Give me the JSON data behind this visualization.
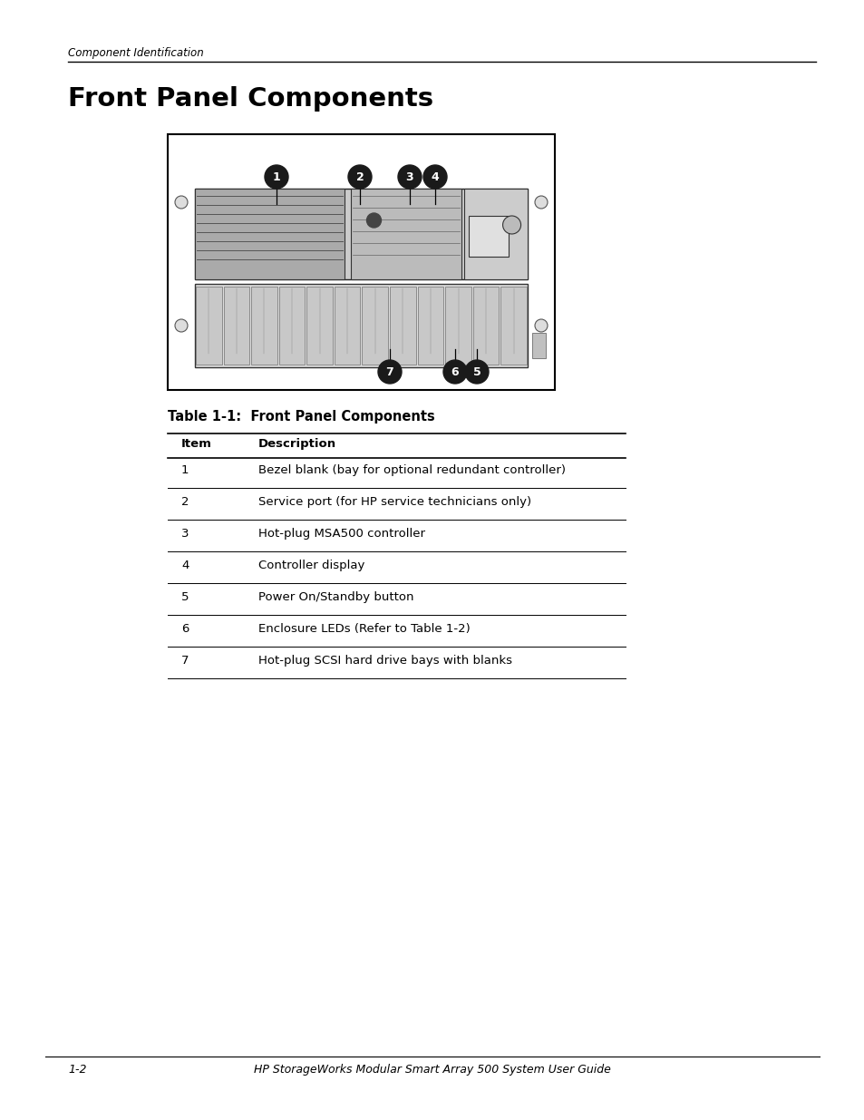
{
  "page_header_italic": "Component Identification",
  "page_title": "Front Panel Components",
  "table_title": "Table 1-1:  Front Panel Components",
  "col1_header": "Item",
  "col2_header": "Description",
  "table_rows": [
    [
      "1",
      "Bezel blank (bay for optional redundant controller)"
    ],
    [
      "2",
      "Service port (for HP service technicians only)"
    ],
    [
      "3",
      "Hot-plug MSA500 controller"
    ],
    [
      "4",
      "Controller display"
    ],
    [
      "5",
      "Power On/Standby button"
    ],
    [
      "6",
      "Enclosure LEDs (Refer to Table 1-2)"
    ],
    [
      "7",
      "Hot-plug SCSI hard drive bays with blanks"
    ]
  ],
  "footer_left": "1-2",
  "footer_center": "HP StorageWorks Modular Smart Array 500 System User Guide",
  "bg_color": "#ffffff",
  "text_color": "#000000",
  "line_color": "#000000"
}
